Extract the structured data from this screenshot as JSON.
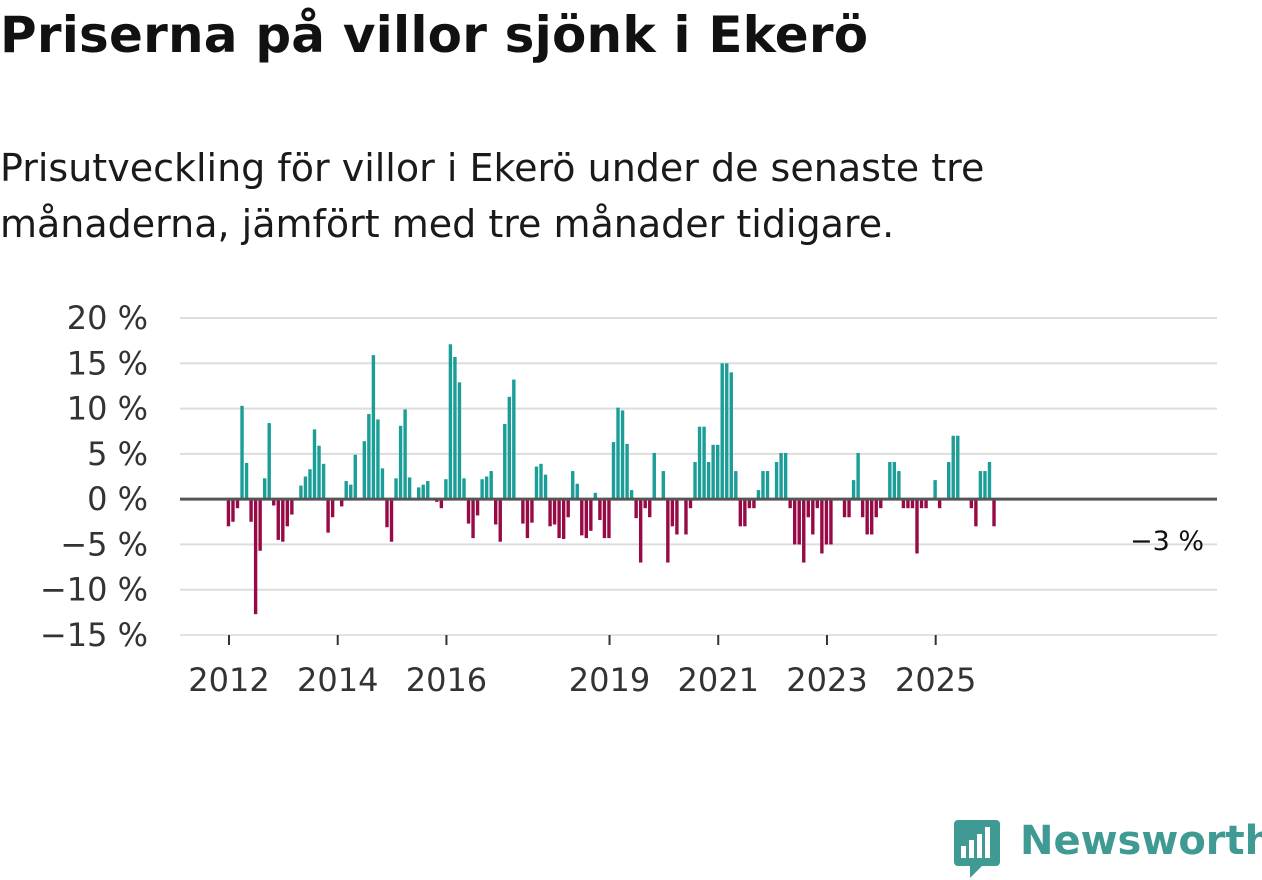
{
  "title": "Priserna på villor sjönk i Ekerö",
  "subtitle": "Prisutveckling för villor i Ekerö under de senaste tre månaderna, jämfört med tre månader tidigare.",
  "logo": {
    "text": "Newsworthy",
    "icon": "newsworthy-chart-icon",
    "color": "#3f9a93"
  },
  "colors": {
    "positive": "#1a9e97",
    "negative": "#970a45",
    "zero_line": "#555555",
    "grid": "#dddddd"
  },
  "chart_data": {
    "type": "bar",
    "title": "Priserna på villor sjönk i Ekerö",
    "xlabel": "",
    "ylabel": "",
    "unit": "%",
    "frequency": "monthly, rolling 3-month change",
    "start": "2012-01",
    "end": "2025-12",
    "ylim": [
      -15,
      20
    ],
    "y_ticks": [
      20,
      15,
      10,
      5,
      0,
      -5,
      -10,
      -15
    ],
    "y_tick_labels": [
      "20 %",
      "15 %",
      "10 %",
      "5 %",
      "0 %",
      "−5 %",
      "−10 %",
      "−15 %"
    ],
    "x_ticks": [
      2012,
      2014,
      2016,
      2019,
      2021,
      2023,
      2025
    ],
    "x_tick_labels": [
      "2012",
      "2014",
      "2016",
      "2019",
      "2021",
      "2023",
      "2025"
    ],
    "annotation": {
      "label": "−3 %",
      "value": -3,
      "date": "2025-12"
    },
    "values": [
      -3,
      -2.5,
      -1,
      10.3,
      4,
      -2.5,
      -12.7,
      -5.7,
      2.3,
      8.4,
      -0.7,
      -4.5,
      -4.7,
      -3,
      -1.7,
      0,
      1.5,
      2.5,
      3.3,
      7.7,
      5.9,
      3.9,
      -3.7,
      -2,
      0,
      -0.8,
      2,
      1.6,
      4.9,
      0,
      6.4,
      9.4,
      15.9,
      8.8,
      3.4,
      -3.1,
      -4.7,
      2.3,
      8.1,
      9.9,
      2.4,
      0,
      1.3,
      1.6,
      2,
      0,
      -0.3,
      -1,
      2.2,
      17.1,
      15.7,
      12.9,
      2.3,
      -2.7,
      -4.3,
      -1.8,
      2.2,
      2.5,
      3.1,
      -2.8,
      -4.7,
      8.3,
      11.3,
      13.2,
      0,
      -2.7,
      -4.3,
      -2.6,
      3.6,
      3.9,
      2.7,
      -3,
      -2.8,
      -4.3,
      -4.4,
      -2,
      3.1,
      1.7,
      -4,
      -4.3,
      -3.5,
      0.7,
      -2.3,
      -4.3,
      -4.3,
      6.3,
      10.1,
      9.8,
      6.1,
      1,
      -2.1,
      -7,
      -1,
      -2,
      5.1,
      0,
      3.1,
      -7,
      -3,
      -3.9,
      0,
      -3.9,
      -1,
      4.1,
      8,
      8,
      4.1,
      6,
      6,
      15,
      15,
      14,
      3.1,
      -3,
      -3,
      -1,
      -1,
      1,
      3.1,
      3.1,
      0,
      4.1,
      5.1,
      5.1,
      -1,
      -5,
      -5,
      -7,
      -2,
      -3.9,
      -1,
      -6,
      -5,
      -5,
      0,
      0,
      -2,
      -2,
      2.1,
      5.1,
      -2,
      -3.9,
      -3.9,
      -2,
      -1,
      0,
      4.1,
      4.1,
      3.1,
      -1,
      -1,
      -1,
      -6,
      -1,
      -1,
      0,
      2.1,
      -1,
      0,
      4.1,
      7,
      7,
      0,
      0,
      -1,
      -3,
      3.1,
      3.1,
      4.1,
      -3
    ]
  }
}
